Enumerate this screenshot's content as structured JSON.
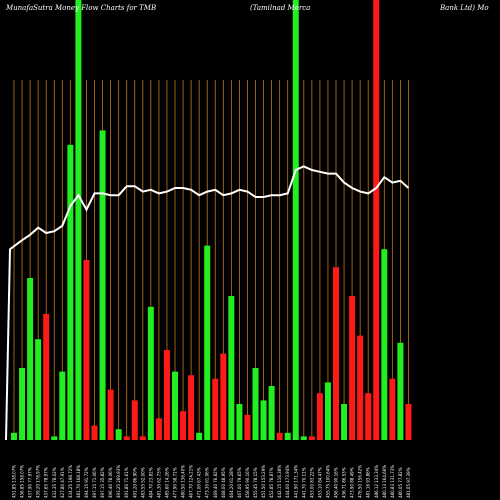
{
  "title": {
    "left": "MunafaSutra  Money Flow  Charts for TMB",
    "middle": "(Tamilnad Merca",
    "right": "Bank Ltd) Mo"
  },
  "chart_data": {
    "type": "bar",
    "title": "MunafaSutra Money Flow Charts for TMB (Tamilnad Mercantile Bank Ltd)",
    "xlabel": "",
    "ylabel": "",
    "ylim": [
      0,
      100
    ],
    "grid": "vertical lines (orange) at every category",
    "legend": "none",
    "colors": {
      "up": "#22ee22",
      "down": "#ff1a1a",
      "grid": "#c87814",
      "line": "#ffffff",
      "background": "#000000"
    },
    "categories": [
      "451.85 138.07%",
      "436.85 158.07%",
      "437.90 77.97%",
      "439.20 178.97%",
      "437.65 78.97%",
      "432.35 78.02%",
      "427.80 47.91%",
      "434.25 198.72%",
      "481.70 168.18%",
      "494.15 91.72%",
      "497.15 71.06%",
      "497.15 35.82%",
      "496.40 78.06%",
      "493.25 269.93%",
      "491.80 71.61%",
      "491.20 86.90%",
      "483.55 52.00%",
      "484.70 23.82%",
      "481.30 62.73%",
      "485.60 14.26%",
      "477.90 58.71%",
      "480.50 136.40%",
      "467.70 124.21%",
      "471.00 67.43%",
      "473.30 61.06%",
      "469.40 76.82%",
      "468.00 48.95%",
      "464.20 61.28%",
      "467.00 79.65%",
      "458.95 90.16%",
      "455.45 78.15%",
      "451.50 153.29%",
      "452.85 78.87%",
      "442.15 116.38%",
      "444.00 173.94%",
      "441.90 171.34%",
      "441.70 70.11%",
      "453.00 83.22%",
      "453.10 84.47%",
      "455.75 100.64%",
      "456.40 90.16%",
      "436.71 86.53%",
      "473.90 88.49%",
      "476.50 156.42%",
      "481.16 93.86%",
      "486.12 133.34%",
      "480.13 164.66%",
      "480.83 131.73%",
      "480.05 77.82%",
      "481.05 97.39%"
    ],
    "values": [
      2,
      20,
      45,
      28,
      35,
      1,
      19,
      82,
      100,
      50,
      4,
      86,
      14,
      3,
      1,
      11,
      1,
      37,
      6,
      25,
      19,
      8,
      18,
      2,
      54,
      17,
      24,
      40,
      10,
      7,
      20,
      11,
      15,
      2,
      2,
      100,
      1,
      1,
      13,
      16,
      48,
      10,
      40,
      29,
      13,
      100,
      53,
      17,
      27,
      10
    ],
    "directions": [
      "up",
      "up",
      "up",
      "up",
      "down",
      "up",
      "up",
      "up",
      "up",
      "down",
      "down",
      "up",
      "down",
      "up",
      "down",
      "down",
      "down",
      "up",
      "down",
      "down",
      "up",
      "down",
      "down",
      "up",
      "up",
      "down",
      "down",
      "up",
      "up",
      "down",
      "up",
      "up",
      "up",
      "down",
      "up",
      "up",
      "up",
      "down",
      "down",
      "up",
      "down",
      "up",
      "down",
      "down",
      "red",
      "down",
      "up",
      "down",
      "up",
      "down"
    ],
    "line_series": {
      "name": "",
      "values": [
        53,
        55.5,
        57,
        59,
        57.5,
        58,
        59.5,
        65,
        68,
        64,
        68.5,
        68.5,
        68,
        68,
        70.5,
        70.5,
        69,
        69.5,
        68.5,
        69,
        70,
        70,
        69.5,
        68,
        69,
        69.5,
        68,
        68.5,
        69.5,
        69,
        67.5,
        67.5,
        68,
        68,
        68.5,
        75,
        76,
        75,
        74.5,
        74,
        74,
        71.5,
        70,
        69,
        68.5,
        70,
        73,
        71.5,
        72,
        70
      ]
    }
  }
}
